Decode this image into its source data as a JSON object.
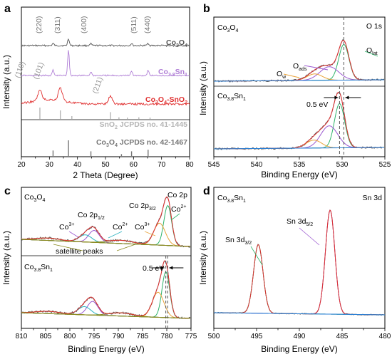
{
  "chart_data": [
    {
      "panel": "a",
      "type": "line",
      "xlabel": "2 Theta (Degree)",
      "ylabel": "Intensity (a.u.)",
      "xlim": [
        20,
        80
      ],
      "xticks": [
        "20",
        "30",
        "40",
        "50",
        "60",
        "70",
        "80"
      ],
      "series": [
        {
          "name": "Co3O4",
          "name_main": "Co",
          "name_sub1": "3",
          "name_mid": "O",
          "name_sub2": "4",
          "color": "#555555",
          "peaks": [
            [
              31.3,
              0.3
            ],
            [
              36.8,
              1.0
            ],
            [
              44.8,
              0.25
            ],
            [
              59.3,
              0.3
            ],
            [
              65.2,
              0.35
            ]
          ]
        },
        {
          "name": "Co3.8Sn1",
          "name_main": "Co",
          "name_sub1": "3.8",
          "name_mid": "Sn",
          "name_sub2": "1",
          "color": "#b07fd6",
          "peaks": [
            [
              31.3,
              0.3
            ],
            [
              36.8,
              1.4
            ],
            [
              44.8,
              0.2
            ],
            [
              59.3,
              0.25
            ],
            [
              65.2,
              0.3
            ]
          ]
        },
        {
          "name": "Co3O4-SnO2",
          "name_main": "Co",
          "name_sub1": "3",
          "name_mid": "O",
          "name_sub2": "4",
          "name_tail": "-SnO",
          "name_sub3": "2",
          "color": "#e03030",
          "peaks": [
            [
              26.6,
              0.8
            ],
            [
              33.9,
              1.0
            ],
            [
              51.8,
              0.6
            ]
          ]
        }
      ],
      "reference_patterns": [
        {
          "name": "SnO2 JCPDS no. 41-1445",
          "name_main": "SnO",
          "name_sub": "2",
          "name_rest": " JCPDS no. 41-1445",
          "color": "#b5b5b5",
          "sticks": [
            [
              26.6,
              1.0
            ],
            [
              33.9,
              0.75
            ],
            [
              38.0,
              0.25
            ],
            [
              51.8,
              0.6
            ],
            [
              54.8,
              0.15
            ],
            [
              57.8,
              0.12
            ],
            [
              61.9,
              0.15
            ],
            [
              65.9,
              0.12
            ]
          ]
        },
        {
          "name": "Co3O4 JCPDS no. 42-1467",
          "name_main": "Co",
          "name_sub1": "3",
          "name_mid": "O",
          "name_sub2": "4",
          "name_rest": " JCPDS no. 42-1467",
          "color": "#777777",
          "sticks": [
            [
              31.3,
              0.35
            ],
            [
              36.8,
              1.0
            ],
            [
              44.8,
              0.3
            ],
            [
              55.7,
              0.12
            ],
            [
              59.3,
              0.3
            ],
            [
              65.2,
              0.4
            ]
          ]
        }
      ],
      "annotations": [
        {
          "text": "(220)",
          "x": 31.3
        },
        {
          "text": "(311)",
          "x": 36.8
        },
        {
          "text": "(400)",
          "x": 44.8
        },
        {
          "text": "(511)",
          "x": 59.3
        },
        {
          "text": "(440)",
          "x": 65.2
        },
        {
          "text": "(110)",
          "x": 26.6
        },
        {
          "text": "(101)",
          "x": 33.9
        },
        {
          "text": "(211)",
          "x": 51.8
        }
      ]
    },
    {
      "panel": "b",
      "type": "line",
      "title": "O 1s",
      "xlabel": "Binding Energy (eV)",
      "ylabel": "Intensity (a.u.)",
      "xlim": [
        545,
        525
      ],
      "xticks": [
        "545",
        "540",
        "535",
        "530",
        "525"
      ],
      "subpanels": [
        {
          "label_main": "Co",
          "label_sub1": "3",
          "label_mid": "O",
          "label_sub2": "4",
          "components": [
            {
              "name": "Olat",
              "center": 529.8,
              "height": 1.0,
              "width": 0.6,
              "color": "#2db36a"
            },
            {
              "name": "Oads",
              "center": 531.5,
              "height": 0.38,
              "width": 1.1,
              "color": "#9b59d0"
            },
            {
              "name": "Ow",
              "center": 533.2,
              "height": 0.18,
              "width": 0.9,
              "color": "#e8a33a"
            }
          ]
        },
        {
          "label_main": "Co",
          "label_sub1": "3.8",
          "label_mid": "Sn",
          "label_sub2": "1",
          "components": [
            {
              "name": "Olat",
              "center": 530.3,
              "height": 1.0,
              "width": 0.6,
              "color": "#2db36a"
            },
            {
              "name": "Oads",
              "center": 531.5,
              "height": 0.5,
              "width": 1.0,
              "color": "#9b59d0"
            },
            {
              "name": "Ow",
              "center": 533.3,
              "height": 0.18,
              "width": 0.9,
              "color": "#e8a33a"
            }
          ]
        }
      ],
      "labels": {
        "o_lat": "O",
        "o_lat_sub": "lat",
        "o_ads": "O",
        "o_ads_sub": "ads",
        "o_w": "O",
        "o_w_sub": "w"
      },
      "shift_label": "0.5 eV"
    },
    {
      "panel": "c",
      "type": "line",
      "title": "Co 2p",
      "xlabel": "Binding Energy (eV)",
      "ylabel": "Intensity (a.u.)",
      "xlim": [
        810,
        775
      ],
      "xticks": [
        "810",
        "805",
        "800",
        "795",
        "790",
        "785",
        "780",
        "775"
      ],
      "subpanels": [
        {
          "label_main": "Co",
          "label_sub1": "3",
          "label_mid": "O",
          "label_sub2": "4",
          "components": [
            {
              "name": "Co3+ 2p3/2",
              "center": 779.8,
              "height": 1.0,
              "width": 0.8,
              "color": "#2db36a"
            },
            {
              "name": "Co2+ 2p3/2",
              "center": 781.5,
              "height": 0.55,
              "width": 1.2,
              "color": "#e8a33a"
            },
            {
              "name": "Co3+ 2p1/2",
              "center": 795.0,
              "height": 0.3,
              "width": 1.1,
              "color": "#9b59d0"
            },
            {
              "name": "Co2+ 2p1/2",
              "center": 796.8,
              "height": 0.18,
              "width": 1.3,
              "color": "#2bb3c0"
            },
            {
              "name": "satellite",
              "center": 789.5,
              "height": 0.08,
              "width": 2.5,
              "color": "#8a8a20"
            },
            {
              "name": "satellite",
              "center": 804.5,
              "height": 0.06,
              "width": 2.5,
              "color": "#8a8a20"
            }
          ]
        },
        {
          "label_main": "Co",
          "label_sub1": "3.8",
          "label_mid": "Sn",
          "label_sub2": "1",
          "components": [
            {
              "name": "Co3+ 2p3/2",
              "center": 780.2,
              "height": 1.0,
              "width": 0.8,
              "color": "#2db36a"
            },
            {
              "name": "Co2+ 2p3/2",
              "center": 781.8,
              "height": 0.55,
              "width": 1.2,
              "color": "#e8a33a"
            },
            {
              "name": "Co3+ 2p1/2",
              "center": 795.3,
              "height": 0.3,
              "width": 1.1,
              "color": "#9b59d0"
            },
            {
              "name": "Co2+ 2p1/2",
              "center": 797.0,
              "height": 0.18,
              "width": 1.3,
              "color": "#2bb3c0"
            },
            {
              "name": "satellite",
              "center": 789.5,
              "height": 0.07,
              "width": 2.5,
              "color": "#8a8a20"
            },
            {
              "name": "satellite",
              "center": 804.5,
              "height": 0.05,
              "width": 2.5,
              "color": "#8a8a20"
            }
          ]
        }
      ],
      "labels": {
        "co2p12": "Co 2p",
        "co2p12_sub": "1/2",
        "co2p32": "Co 2p",
        "co2p32_sub": "3/2",
        "co3plus": "Co",
        "co3plus_sup": "3+",
        "co2plus": "Co",
        "co2plus_sup": "2+",
        "satellite": "satellite peaks"
      },
      "shift_label": "0.5 eV"
    },
    {
      "panel": "d",
      "type": "line",
      "title": "Sn 3d",
      "xlabel": "Binding Energy (eV)",
      "ylabel": "Intensity (a.u.)",
      "xlim": [
        500,
        480
      ],
      "xticks": [
        "500",
        "495",
        "490",
        "485",
        "480"
      ],
      "sample_main": "Co",
      "sample_sub1": "3.8",
      "sample_mid": "Sn",
      "sample_sub2": "1",
      "components": [
        {
          "name": "Sn 3d5/2",
          "center": 486.4,
          "height": 1.0,
          "width": 0.55,
          "color": "#9b59d0"
        },
        {
          "name": "Sn 3d3/2",
          "center": 494.8,
          "height": 0.66,
          "width": 0.55,
          "color": "#2db36a"
        }
      ],
      "labels": {
        "d32": "Sn 3d",
        "d32_sub": "3/2",
        "d52": "Sn 3d",
        "d52_sub": "5/2"
      }
    }
  ],
  "panel_letters": {
    "a": "a",
    "b": "b",
    "c": "c",
    "d": "d"
  },
  "colors": {
    "raw": "#555555",
    "envelope": "#e03030",
    "background": "#2a7fd4",
    "bg_c": "#8a8a20"
  }
}
